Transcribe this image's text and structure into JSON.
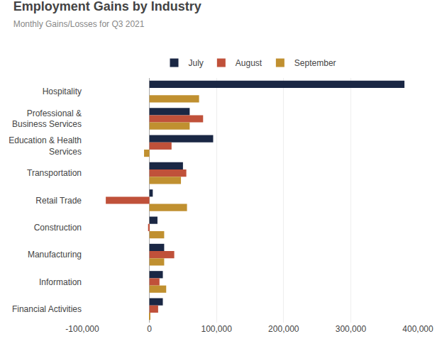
{
  "chart_data": {
    "type": "bar",
    "orientation": "horizontal",
    "title": "Employment Gains by Industry",
    "subtitle": "Monthly Gains/Losses for Q3 2021",
    "categories": [
      "Hospitality",
      "Professional &\nBusiness Services",
      "Education & Health\nServices",
      "Transportation",
      "Retail Trade",
      "Construction",
      "Manufacturing",
      "Information",
      "Financial Activities"
    ],
    "series": [
      {
        "name": "July",
        "color": "#1a2744",
        "values": [
          380000,
          60000,
          95000,
          50000,
          5000,
          12000,
          22000,
          20000,
          20000
        ]
      },
      {
        "name": "August",
        "color": "#c0513a",
        "values": [
          0,
          80000,
          33000,
          55000,
          -65000,
          -2000,
          37000,
          15000,
          13000
        ]
      },
      {
        "name": "September",
        "color": "#c09030",
        "values": [
          74000,
          60000,
          -8000,
          47000,
          56000,
          22000,
          22000,
          25000,
          1000
        ]
      }
    ],
    "xlim": [
      -100000,
      400000
    ],
    "xticks": [
      {
        "value": -100000,
        "label": "-100,000"
      },
      0,
      {
        "value": 100000,
        "label": "100,000"
      },
      {
        "value": 200000,
        "label": "200,000"
      },
      {
        "value": 300000,
        "label": "300,000"
      },
      {
        "value": 400000,
        "label": "400,000"
      }
    ],
    "grid": true,
    "legend": "top"
  }
}
